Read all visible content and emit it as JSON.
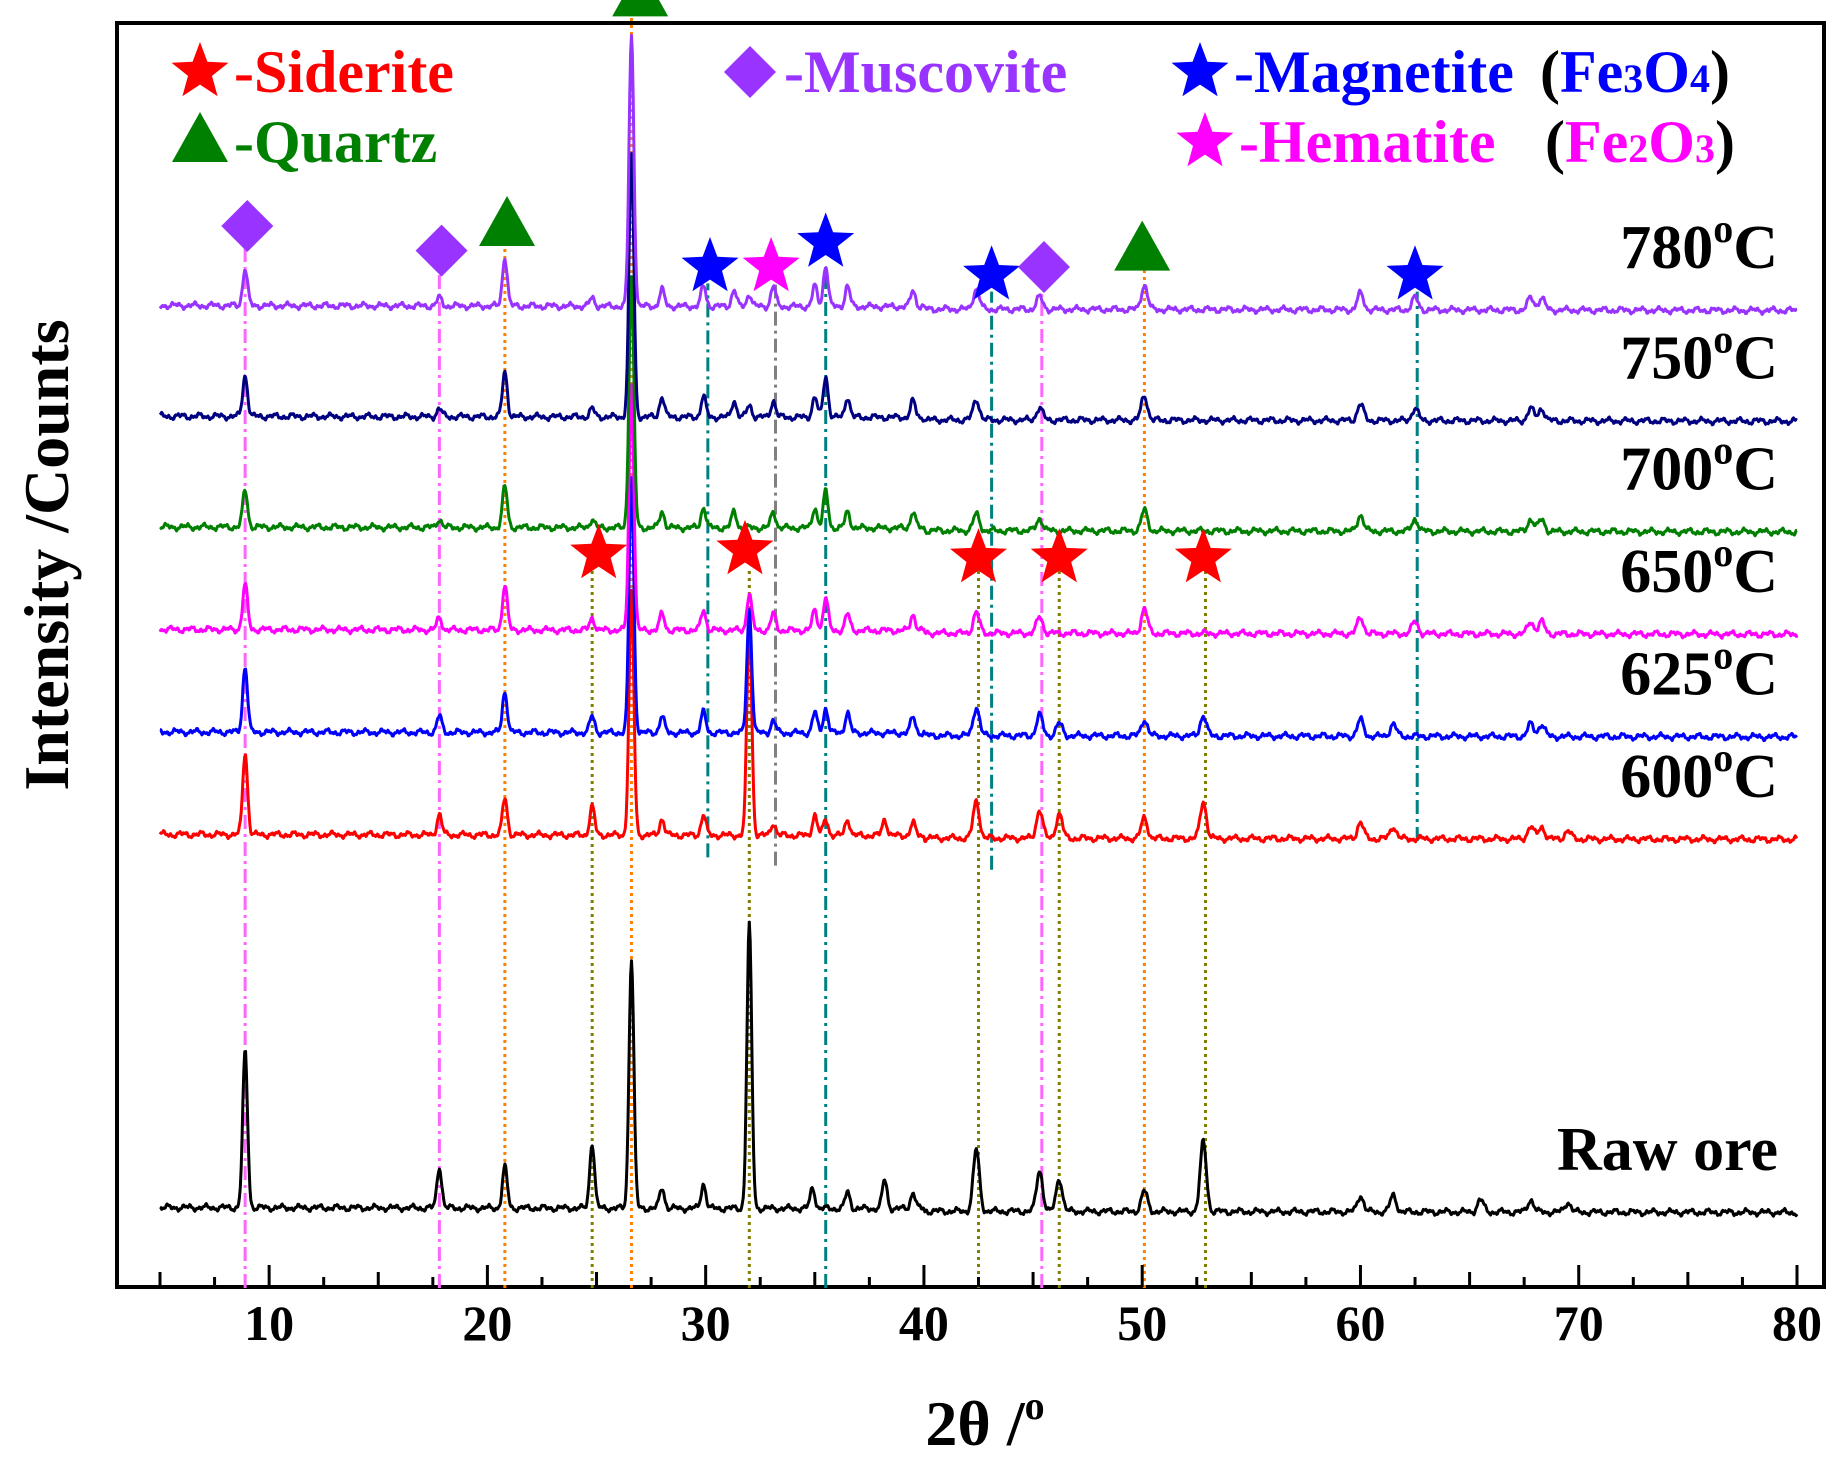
{
  "chart_data": {
    "type": "line",
    "title": "",
    "xlabel": "2θ /",
    "xlabel_sup": "o",
    "ylabel": "Intensity /Counts",
    "xlim": [
      5,
      80
    ],
    "xticks": [
      10,
      20,
      30,
      40,
      50,
      60,
      70,
      80
    ],
    "xtick_labels": [
      "10",
      "20",
      "30",
      "40",
      "50",
      "60",
      "70",
      "80"
    ],
    "grid": false,
    "series": [
      {
        "name": "Raw ore",
        "label": "Raw ore",
        "superscript": "",
        "unit": "",
        "color": "#000000",
        "baseline": 0,
        "peaks": [
          [
            8.9,
            190
          ],
          [
            17.8,
            50
          ],
          [
            20.8,
            50
          ],
          [
            24.8,
            80
          ],
          [
            26.6,
            305
          ],
          [
            28.0,
            25
          ],
          [
            29.9,
            30
          ],
          [
            32.0,
            345
          ],
          [
            34.9,
            25
          ],
          [
            36.5,
            20
          ],
          [
            38.2,
            35
          ],
          [
            39.5,
            20
          ],
          [
            42.4,
            75
          ],
          [
            45.3,
            50
          ],
          [
            46.2,
            40
          ],
          [
            50.1,
            25
          ],
          [
            52.8,
            85
          ],
          [
            60.0,
            20
          ],
          [
            61.5,
            20
          ],
          [
            65.5,
            15
          ],
          [
            67.8,
            15
          ],
          [
            69.5,
            12
          ]
        ]
      },
      {
        "name": "600oC",
        "label": "600",
        "superscript": "o",
        "unit": "C",
        "color": "#ff0000",
        "baseline": 455,
        "peaks": [
          [
            8.9,
            100
          ],
          [
            17.8,
            25
          ],
          [
            20.8,
            45
          ],
          [
            24.8,
            35
          ],
          [
            26.6,
            295
          ],
          [
            28.0,
            20
          ],
          [
            29.9,
            25
          ],
          [
            32.0,
            265
          ],
          [
            33.1,
            15
          ],
          [
            35.0,
            25
          ],
          [
            35.5,
            20
          ],
          [
            36.5,
            20
          ],
          [
            38.2,
            20
          ],
          [
            39.5,
            15
          ],
          [
            42.4,
            45
          ],
          [
            45.3,
            35
          ],
          [
            46.2,
            30
          ],
          [
            50.1,
            25
          ],
          [
            52.8,
            45
          ],
          [
            60.0,
            20
          ],
          [
            61.5,
            15
          ],
          [
            67.8,
            15
          ],
          [
            68.3,
            15
          ],
          [
            69.5,
            10
          ]
        ]
      },
      {
        "name": "625oC",
        "label": "625",
        "superscript": "o",
        "unit": "C",
        "color": "#0000ff",
        "baseline": 580,
        "peaks": [
          [
            8.9,
            80
          ],
          [
            17.8,
            20
          ],
          [
            20.8,
            50
          ],
          [
            24.8,
            20
          ],
          [
            26.6,
            310
          ],
          [
            28.0,
            20
          ],
          [
            29.9,
            25
          ],
          [
            32.0,
            150
          ],
          [
            33.1,
            15
          ],
          [
            35.0,
            25
          ],
          [
            35.5,
            30
          ],
          [
            36.5,
            25
          ],
          [
            39.5,
            20
          ],
          [
            42.4,
            35
          ],
          [
            45.3,
            25
          ],
          [
            46.2,
            15
          ],
          [
            50.1,
            20
          ],
          [
            52.8,
            25
          ],
          [
            60.0,
            20
          ],
          [
            61.5,
            15
          ],
          [
            67.8,
            15
          ],
          [
            68.3,
            15
          ]
        ]
      },
      {
        "name": "650oC",
        "label": "650",
        "superscript": "o",
        "unit": "C",
        "color": "#ff00ff",
        "baseline": 705,
        "peaks": [
          [
            8.9,
            55
          ],
          [
            17.8,
            15
          ],
          [
            20.8,
            55
          ],
          [
            24.8,
            15
          ],
          [
            26.6,
            300
          ],
          [
            28.0,
            20
          ],
          [
            29.9,
            25
          ],
          [
            32.0,
            45
          ],
          [
            33.1,
            20
          ],
          [
            35.0,
            25
          ],
          [
            35.5,
            40
          ],
          [
            36.5,
            20
          ],
          [
            39.5,
            20
          ],
          [
            42.4,
            25
          ],
          [
            45.3,
            20
          ],
          [
            50.1,
            30
          ],
          [
            60.0,
            20
          ],
          [
            62.5,
            15
          ],
          [
            67.8,
            15
          ],
          [
            68.3,
            15
          ]
        ]
      },
      {
        "name": "700oC",
        "label": "700",
        "superscript": "o",
        "unit": "C",
        "color": "#008000",
        "baseline": 830,
        "peaks": [
          [
            8.9,
            45
          ],
          [
            17.8,
            10
          ],
          [
            20.8,
            50
          ],
          [
            24.8,
            10
          ],
          [
            26.6,
            305
          ],
          [
            28.0,
            20
          ],
          [
            29.9,
            25
          ],
          [
            31.3,
            20
          ],
          [
            33.1,
            20
          ],
          [
            35.0,
            25
          ],
          [
            35.5,
            45
          ],
          [
            36.5,
            20
          ],
          [
            39.5,
            20
          ],
          [
            42.4,
            20
          ],
          [
            45.3,
            15
          ],
          [
            50.1,
            25
          ],
          [
            60.0,
            20
          ],
          [
            62.5,
            15
          ],
          [
            67.8,
            15
          ],
          [
            68.3,
            15
          ]
        ]
      },
      {
        "name": "750oC",
        "label": "750",
        "superscript": "o",
        "unit": "C",
        "color": "#000080",
        "baseline": 965,
        "peaks": [
          [
            8.9,
            50
          ],
          [
            17.8,
            10
          ],
          [
            20.8,
            55
          ],
          [
            24.8,
            10
          ],
          [
            26.6,
            320
          ],
          [
            28.0,
            25
          ],
          [
            29.9,
            25
          ],
          [
            31.3,
            20
          ],
          [
            32.0,
            15
          ],
          [
            33.1,
            20
          ],
          [
            35.0,
            25
          ],
          [
            35.5,
            50
          ],
          [
            36.5,
            25
          ],
          [
            39.5,
            20
          ],
          [
            42.4,
            25
          ],
          [
            45.3,
            15
          ],
          [
            50.1,
            30
          ],
          [
            60.0,
            20
          ],
          [
            62.5,
            15
          ],
          [
            67.8,
            15
          ],
          [
            68.3,
            15
          ]
        ]
      },
      {
        "name": "780oC",
        "label": "780",
        "superscript": "o",
        "unit": "C",
        "color": "#9933ff",
        "baseline": 1100,
        "peaks": [
          [
            8.9,
            45
          ],
          [
            17.8,
            10
          ],
          [
            20.8,
            60
          ],
          [
            24.8,
            10
          ],
          [
            26.6,
            330
          ],
          [
            28.0,
            20
          ],
          [
            29.9,
            25
          ],
          [
            31.3,
            20
          ],
          [
            32.0,
            15
          ],
          [
            33.1,
            25
          ],
          [
            35.0,
            25
          ],
          [
            35.5,
            50
          ],
          [
            36.5,
            25
          ],
          [
            39.5,
            20
          ],
          [
            42.4,
            25
          ],
          [
            45.3,
            15
          ],
          [
            50.1,
            30
          ],
          [
            60.0,
            20
          ],
          [
            62.5,
            15
          ],
          [
            67.8,
            15
          ],
          [
            68.3,
            15
          ]
        ]
      }
    ],
    "reference_lines": [
      {
        "phase": "Muscovite",
        "x": 8.9,
        "color": "#ff66ff",
        "style": "dashdot",
        "top": 1180
      },
      {
        "phase": "Muscovite",
        "x": 17.8,
        "color": "#ff66ff",
        "style": "dashdot",
        "top": 1150
      },
      {
        "phase": "Quartz",
        "x": 20.8,
        "color": "#ff8000",
        "style": "dotted",
        "top": 1180
      },
      {
        "phase": "Siderite",
        "x": 24.8,
        "color": "#808000",
        "style": "dotted",
        "top": 780
      },
      {
        "phase": "Quartz",
        "x": 26.6,
        "color": "#ff8000",
        "style": "dotted",
        "top": 1460
      },
      {
        "phase": "Magnetite",
        "x": 30.1,
        "color": "#008080",
        "style": "dashdot",
        "top": 1130,
        "bottom": 430
      },
      {
        "phase": "Siderite",
        "x": 32.0,
        "color": "#808000",
        "style": "dotted",
        "top": 780
      },
      {
        "phase": "Hematite",
        "x": 33.2,
        "color": "#808080",
        "style": "dashdot",
        "top": 1130,
        "bottom": 420
      },
      {
        "phase": "Magnetite",
        "x": 35.5,
        "color": "#008080",
        "style": "dashdot",
        "top": 1155
      },
      {
        "phase": "Siderite",
        "x": 42.5,
        "color": "#808000",
        "style": "dotted",
        "top": 780
      },
      {
        "phase": "Magnetite",
        "x": 43.1,
        "color": "#008080",
        "style": "dashdot",
        "top": 1120,
        "bottom": 415
      },
      {
        "phase": "Muscovite",
        "x": 45.4,
        "color": "#ff66ff",
        "style": "dashdot",
        "top": 1130
      },
      {
        "phase": "Siderite",
        "x": 46.2,
        "color": "#808000",
        "style": "dotted",
        "top": 780
      },
      {
        "phase": "Quartz",
        "x": 50.1,
        "color": "#ff8000",
        "style": "dotted",
        "top": 1150
      },
      {
        "phase": "Siderite",
        "x": 52.9,
        "color": "#808000",
        "style": "dotted",
        "top": 780
      },
      {
        "phase": "Magnetite",
        "x": 62.6,
        "color": "#008080",
        "style": "dashdot",
        "top": 1120,
        "bottom": 450
      }
    ],
    "markers": [
      {
        "phase": "Muscovite",
        "shape": "diamond",
        "x": 9.0,
        "y": 1200,
        "color": "#9933ff"
      },
      {
        "phase": "Muscovite",
        "shape": "diamond",
        "x": 17.9,
        "y": 1170,
        "color": "#9933ff"
      },
      {
        "phase": "Quartz",
        "shape": "triangle",
        "x": 20.9,
        "y": 1200,
        "color": "#008000"
      },
      {
        "phase": "Quartz",
        "shape": "triangle",
        "x": 27.0,
        "y": 1480,
        "color": "#008000"
      },
      {
        "phase": "Magnetite",
        "shape": "star",
        "x": 30.2,
        "y": 1150,
        "color": "#0000ff"
      },
      {
        "phase": "Hematite",
        "shape": "star",
        "x": 33.0,
        "y": 1150,
        "color": "#ff00ff"
      },
      {
        "phase": "Magnetite",
        "shape": "star",
        "x": 35.5,
        "y": 1180,
        "color": "#0000ff"
      },
      {
        "phase": "Magnetite",
        "shape": "star",
        "x": 43.1,
        "y": 1140,
        "color": "#0000ff"
      },
      {
        "phase": "Muscovite",
        "shape": "diamond",
        "x": 45.5,
        "y": 1150,
        "color": "#9933ff"
      },
      {
        "phase": "Quartz",
        "shape": "triangle",
        "x": 50.0,
        "y": 1170,
        "color": "#008000"
      },
      {
        "phase": "Magnetite",
        "shape": "star",
        "x": 62.5,
        "y": 1140,
        "color": "#0000ff"
      },
      {
        "phase": "Siderite",
        "shape": "star",
        "x": 25.1,
        "y": 800,
        "color": "#ff0000"
      },
      {
        "phase": "Siderite",
        "shape": "star",
        "x": 31.8,
        "y": 805,
        "color": "#ff0000"
      },
      {
        "phase": "Siderite",
        "shape": "star",
        "x": 42.5,
        "y": 795,
        "color": "#ff0000"
      },
      {
        "phase": "Siderite",
        "shape": "star",
        "x": 46.2,
        "y": 795,
        "color": "#ff0000"
      },
      {
        "phase": "Siderite",
        "shape": "star",
        "x": 52.8,
        "y": 795,
        "color": "#ff0000"
      }
    ],
    "legend": [
      {
        "symbol": "star",
        "symbol_color": "#ff0000",
        "text": "-Siderite",
        "text_color": "#ff0000",
        "formula": ""
      },
      {
        "symbol": "diamond",
        "symbol_color": "#9933ff",
        "text": "-Muscovite",
        "text_color": "#9933ff",
        "formula": ""
      },
      {
        "symbol": "star",
        "symbol_color": "#0000ff",
        "text": "-Magnetite",
        "text_color": "#0000ff",
        "formula": "Fe3O4",
        "formula_color": "#0000ff"
      },
      {
        "symbol": "triangle",
        "symbol_color": "#008000",
        "text": "-Quartz",
        "text_color": "#008000",
        "formula": ""
      },
      {
        "symbol": "star",
        "symbol_color": "#ff00ff",
        "text": "-Hematite",
        "text_color": "#ff00ff",
        "formula": "Fe2O3",
        "formula_color": "#ff00ff"
      }
    ],
    "legend_position": "top"
  }
}
